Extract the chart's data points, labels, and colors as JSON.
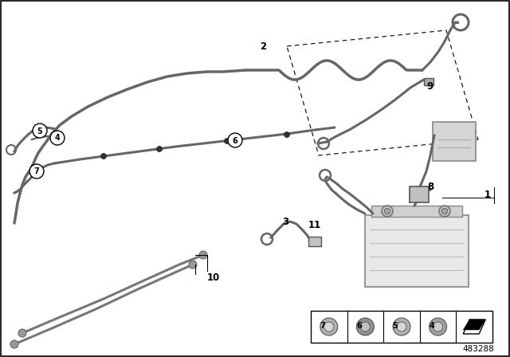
{
  "bg_color": "#ffffff",
  "diagram_number": "483288",
  "line_color": "#666666",
  "line_color2": "#888888",
  "dark_color": "#444444"
}
